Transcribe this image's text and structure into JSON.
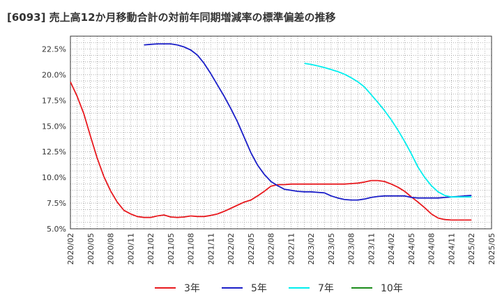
{
  "title": "[6093]  売上高12か月移動合計の対前年同期増減率の標準偏差の推移",
  "chart_data": {
    "type": "line",
    "title": "[6093]  売上高12か月移動合計の対前年同期増減率の標準偏差の推移",
    "xlabel": "",
    "ylabel": "",
    "ylim": [
      5.0,
      23.75
    ],
    "yticks": [
      "5.0%",
      "7.5%",
      "10.0%",
      "12.5%",
      "15.0%",
      "17.5%",
      "20.0%",
      "22.5%"
    ],
    "ytick_values": [
      5.0,
      7.5,
      10.0,
      12.5,
      15.0,
      17.5,
      20.0,
      22.5
    ],
    "xticks": [
      "2020/02",
      "2020/05",
      "2020/08",
      "2020/11",
      "2021/02",
      "2021/05",
      "2021/08",
      "2021/11",
      "2022/02",
      "2022/05",
      "2022/08",
      "2022/11",
      "2023/02",
      "2023/05",
      "2023/08",
      "2023/11",
      "2024/02",
      "2024/05",
      "2024/08",
      "2024/11",
      "2025/02",
      "2025/05"
    ],
    "grid": true,
    "legend_position": "bottom",
    "series": [
      {
        "name": "3年",
        "color": "#e8191e",
        "start": "2020/02",
        "values": [
          19.3,
          17.9,
          16.2,
          14.0,
          11.9,
          10.1,
          8.7,
          7.6,
          6.8,
          6.45,
          6.2,
          6.1,
          6.1,
          6.25,
          6.35,
          6.15,
          6.1,
          6.15,
          6.25,
          6.2,
          6.2,
          6.3,
          6.45,
          6.7,
          7.0,
          7.3,
          7.6,
          7.8,
          8.2,
          8.65,
          9.15,
          9.3,
          9.3,
          9.35,
          9.35,
          9.35,
          9.35,
          9.35,
          9.35,
          9.35,
          9.35,
          9.35,
          9.4,
          9.45,
          9.55,
          9.7,
          9.7,
          9.6,
          9.35,
          9.05,
          8.65,
          8.1,
          7.6,
          7.05,
          6.45,
          6.05,
          5.9,
          5.85,
          5.85,
          5.85,
          5.85
        ]
      },
      {
        "name": "5年",
        "color": "#1a1ec8",
        "start": "2021/01",
        "values": [
          22.9,
          22.95,
          23.0,
          23.0,
          23.0,
          22.9,
          22.7,
          22.4,
          21.9,
          21.1,
          20.1,
          19.0,
          17.9,
          16.7,
          15.4,
          13.9,
          12.4,
          11.2,
          10.3,
          9.6,
          9.2,
          8.85,
          8.75,
          8.65,
          8.6,
          8.6,
          8.55,
          8.5,
          8.2,
          8.0,
          7.85,
          7.8,
          7.8,
          7.9,
          8.05,
          8.15,
          8.2,
          8.2,
          8.2,
          8.2,
          8.05,
          8.0,
          8.0,
          8.0,
          8.0,
          8.05,
          8.1,
          8.15,
          8.2,
          8.25
        ]
      },
      {
        "name": "7年",
        "color": "#00eeee",
        "start": "2023/01",
        "values": [
          21.1,
          21.0,
          20.85,
          20.7,
          20.5,
          20.3,
          20.05,
          19.7,
          19.3,
          18.8,
          18.05,
          17.3,
          16.5,
          15.6,
          14.6,
          13.5,
          12.3,
          11.0,
          10.0,
          9.2,
          8.6,
          8.25,
          8.1,
          8.1,
          8.1,
          8.1
        ]
      },
      {
        "name": "10年",
        "color": "#1a8c1a",
        "start": "2025/02",
        "values": []
      }
    ]
  }
}
